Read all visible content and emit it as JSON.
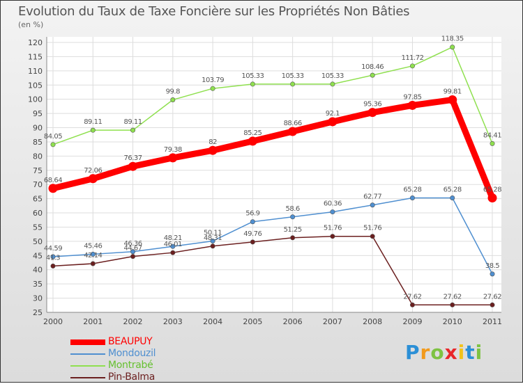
{
  "chart_data": {
    "type": "line",
    "title": "Evolution du Taux de Taxe Foncière sur les Propriétés Non Bâties",
    "ylabel": "(en %)",
    "categories": [
      "2000",
      "2001",
      "2002",
      "2003",
      "2004",
      "2005",
      "2006",
      "2007",
      "2008",
      "2009",
      "2010",
      "2011"
    ],
    "ylim": [
      25,
      120
    ],
    "yticks": [
      25,
      30,
      35,
      40,
      45,
      50,
      55,
      60,
      65,
      70,
      75,
      80,
      85,
      90,
      95,
      100,
      105,
      110,
      115,
      120
    ],
    "grid": true,
    "legend_position": "bottom-left",
    "series": [
      {
        "name": "BEAUPUY",
        "color": "#ff0000",
        "values": [
          68.64,
          72.06,
          76.37,
          79.38,
          82,
          85.25,
          88.66,
          92.1,
          95.36,
          97.85,
          99.81,
          65.28
        ],
        "labels": [
          "68.64",
          "72.06",
          "76.37",
          "79.38",
          "82",
          "85.25",
          "88.66",
          "92.1",
          "95.36",
          "97.85",
          "99.81",
          "65.28"
        ]
      },
      {
        "name": "Mondouzil",
        "color": "#4f8fd0",
        "values": [
          44.59,
          45.46,
          46.36,
          48.21,
          50.11,
          56.9,
          58.6,
          60.36,
          62.77,
          65.28,
          65.28,
          38.5
        ],
        "labels": [
          "44.59",
          "45.46",
          "46.36",
          "48.21",
          "50.11",
          "56.9",
          "58.6",
          "60.36",
          "62.77",
          "65.28",
          "65.28",
          "38.5"
        ]
      },
      {
        "name": "Montrabé",
        "color": "#8fe04f",
        "values": [
          84.05,
          89.11,
          89.11,
          99.8,
          103.79,
          105.33,
          105.33,
          105.33,
          108.46,
          111.72,
          118.35,
          84.41
        ],
        "labels": [
          "84.05",
          "89.11",
          "89.11",
          "99.8",
          "103.79",
          "105.33",
          "105.33",
          "105.33",
          "108.46",
          "111.72",
          "118.35",
          "84.41"
        ]
      },
      {
        "name": "Pin-Balma",
        "color": "#6b1f1f",
        "values": [
          41.3,
          42.14,
          44.67,
          46.01,
          48.31,
          49.76,
          51.25,
          51.76,
          51.76,
          27.62,
          27.62,
          27.62
        ],
        "labels": [
          "41.3",
          "42.14",
          "44.67",
          "46.01",
          "48.31",
          "49.76",
          "51.25",
          "51.76",
          "51.76",
          "27.62",
          "27.62",
          "27.62"
        ]
      }
    ]
  },
  "logo": {
    "text": "Proxiti",
    "letters": [
      "P",
      "r",
      "o",
      "x",
      "i",
      "t",
      "i"
    ],
    "colors": [
      "#2b8fd6",
      "#f29a1c",
      "#7ec242",
      "#e8262a",
      "#f2c21c",
      "#2b8fd6",
      "#7ec242"
    ]
  }
}
